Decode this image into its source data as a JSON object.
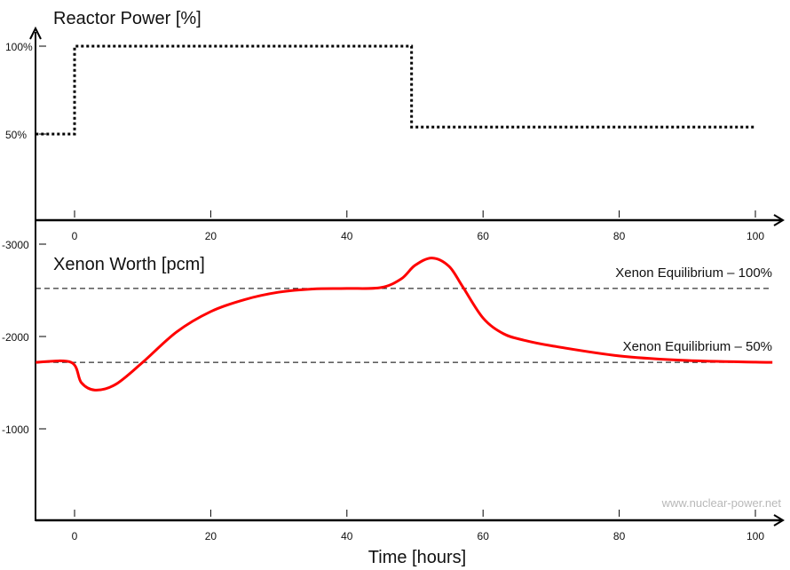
{
  "chart_data": [
    {
      "type": "line",
      "title": "Reactor Power [%]",
      "xlabel": "",
      "ylabel": "",
      "xlim": [
        -5.7,
        103
      ],
      "ylim": [
        0,
        100
      ],
      "x_ticks": [
        "0",
        "20",
        "40",
        "60",
        "80",
        "100"
      ],
      "x_tick_values": [
        0,
        20,
        40,
        60,
        80,
        100
      ],
      "y_ticks": [
        "50%",
        "100%"
      ],
      "y_tick_values": [
        50,
        100
      ],
      "series": [
        {
          "name": "Reactor Power",
          "style": "dotted",
          "color": "#000000",
          "x": [
            -5.7,
            0,
            0,
            49.5,
            49.5,
            100
          ],
          "y": [
            50,
            50,
            100,
            100,
            54,
            54
          ]
        }
      ]
    },
    {
      "type": "line",
      "title": "Xenon Worth [pcm]",
      "xlabel": "Time [hours]",
      "ylabel": "",
      "xlim": [
        -5.7,
        103
      ],
      "ylim": [
        0,
        -3000
      ],
      "x_ticks": [
        "0",
        "20",
        "40",
        "60",
        "80",
        "100"
      ],
      "x_tick_values": [
        0,
        20,
        40,
        60,
        80,
        100
      ],
      "y_ticks": [
        "-3000",
        "-2000",
        "-1000"
      ],
      "y_tick_values": [
        -3000,
        -2000,
        -1000
      ],
      "reference_lines": [
        {
          "label": "Xenon Equilibrium – 100%",
          "value": -2520
        },
        {
          "label": "Xenon Equilibrium – 50%",
          "value": -1720
        }
      ],
      "series": [
        {
          "name": "Xenon Worth",
          "color": "#ff0000",
          "x": [
            -5.7,
            -0.5,
            1,
            3,
            6,
            10,
            15,
            20,
            25,
            30,
            35,
            40,
            45,
            48,
            50,
            52.5,
            55,
            57,
            60,
            63,
            66,
            70,
            80,
            90,
            100,
            102.5
          ],
          "y": [
            -1720,
            -1720,
            -1500,
            -1420,
            -1480,
            -1720,
            -2050,
            -2270,
            -2400,
            -2480,
            -2515,
            -2520,
            -2530,
            -2625,
            -2770,
            -2850,
            -2760,
            -2540,
            -2200,
            -2030,
            -1960,
            -1900,
            -1790,
            -1740,
            -1722,
            -1720
          ]
        }
      ]
    }
  ],
  "watermark": "www.nuclear-power.net"
}
